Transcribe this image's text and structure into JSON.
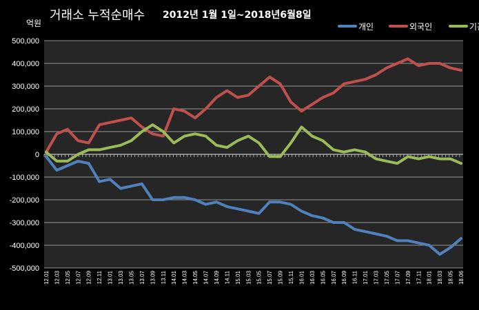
{
  "chart_data": {
    "type": "line",
    "title": "거래소 누적순매수",
    "subtitle": "2012년 1월 1일~2018년6월8일",
    "ylabel": "억원",
    "ylim": [
      -500000,
      500000
    ],
    "yticks": [
      500000,
      400000,
      300000,
      200000,
      100000,
      0,
      -100000,
      -200000,
      -300000,
      -400000,
      -500000
    ],
    "ytick_labels": [
      "500,000",
      "400,000",
      "300,000",
      "200,000",
      "100,000",
      "0",
      "-100,000",
      "-200,000",
      "-300,000",
      "-400,000",
      "-500,000"
    ],
    "grid": true,
    "legend_position": "top-right",
    "x": [
      "12.01",
      "12.03",
      "12.05",
      "12.07",
      "12.09",
      "12.11",
      "13.01",
      "13.03",
      "13.05",
      "13.07",
      "13.09",
      "13.11",
      "14.01",
      "14.03",
      "14.05",
      "14.07",
      "14.09",
      "14.11",
      "15.01",
      "15.03",
      "15.05",
      "15.07",
      "15.09",
      "15.11",
      "16.01",
      "16.03",
      "16.05",
      "16.07",
      "16.09",
      "16.11",
      "17.01",
      "17.03",
      "17.05",
      "17.07",
      "17.09",
      "17.11",
      "18.01",
      "18.03",
      "18.05",
      "18.06"
    ],
    "series": [
      {
        "name": "개인",
        "color": "#4F81BD",
        "values": [
          -10000,
          -70000,
          -50000,
          -30000,
          -40000,
          -120000,
          -110000,
          -150000,
          -140000,
          -130000,
          -200000,
          -200000,
          -190000,
          -190000,
          -200000,
          -220000,
          -210000,
          -230000,
          -240000,
          -250000,
          -260000,
          -210000,
          -210000,
          -220000,
          -250000,
          -270000,
          -280000,
          -300000,
          -300000,
          -330000,
          -340000,
          -350000,
          -360000,
          -380000,
          -380000,
          -390000,
          -400000,
          -440000,
          -410000,
          -370000
        ]
      },
      {
        "name": "외국인",
        "color": "#C0504D",
        "values": [
          10000,
          90000,
          110000,
          60000,
          50000,
          130000,
          140000,
          150000,
          160000,
          120000,
          90000,
          80000,
          200000,
          190000,
          160000,
          200000,
          250000,
          280000,
          250000,
          260000,
          300000,
          340000,
          310000,
          230000,
          190000,
          220000,
          250000,
          270000,
          310000,
          320000,
          330000,
          350000,
          380000,
          400000,
          420000,
          390000,
          400000,
          400000,
          380000,
          370000
        ]
      },
      {
        "name": "기관",
        "color": "#9BBB59",
        "values": [
          10000,
          -30000,
          -30000,
          0,
          20000,
          20000,
          30000,
          40000,
          60000,
          100000,
          130000,
          100000,
          50000,
          80000,
          90000,
          80000,
          40000,
          30000,
          60000,
          80000,
          50000,
          -10000,
          -10000,
          50000,
          120000,
          80000,
          60000,
          20000,
          10000,
          20000,
          10000,
          -20000,
          -30000,
          -40000,
          -10000,
          -20000,
          -10000,
          -20000,
          -20000,
          -40000
        ]
      }
    ]
  }
}
